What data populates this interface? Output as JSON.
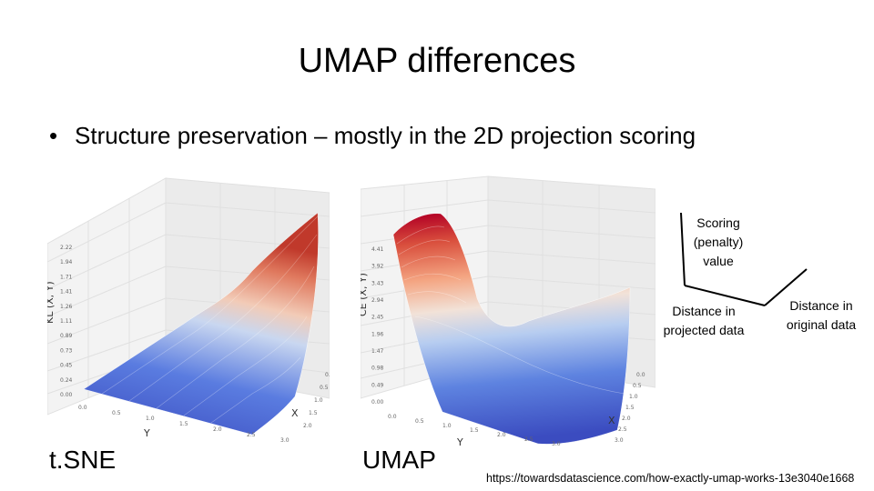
{
  "slide": {
    "title": "UMAP differences",
    "bullet": "Structure preservation – mostly in the 2D projection scoring"
  },
  "plots": {
    "left": {
      "caption": "t.SNE",
      "z_label": "KL (X, Y)",
      "x_label": "X",
      "y_label": "Y",
      "z_ticks": [
        "2.22",
        "1.94",
        "1.71",
        "1.41",
        "1.26",
        "1.11",
        "0.89",
        "0.73",
        "0.45",
        "0.24",
        "0.00"
      ],
      "x_ticks": [
        "0.0",
        "0.5",
        "1.0",
        "1.5",
        "2.0"
      ],
      "y_ticks": [
        "0.0",
        "0.5",
        "1.0",
        "1.5",
        "2.0",
        "2.5",
        "3.0"
      ]
    },
    "right": {
      "caption": "UMAP",
      "z_label": "CE (X, Y)",
      "x_label": "X",
      "y_label": "Y",
      "z_ticks": [
        "4.41",
        "3.92",
        "3.43",
        "2.94",
        "2.45",
        "1.96",
        "1.47",
        "0.98",
        "0.49",
        "0.00"
      ],
      "x_ticks": [
        "0.0",
        "0.5",
        "1.0",
        "1.5",
        "2.0",
        "2.5",
        "3.0"
      ],
      "y_ticks": [
        "0.0",
        "0.5",
        "1.0",
        "1.5",
        "2.0",
        "2.5",
        "3.0"
      ]
    }
  },
  "legend": {
    "scoring": "Scoring\n(penalty)\nvalue",
    "projected": "Distance in\nprojected data",
    "original": "Distance in\noriginal data"
  },
  "source": "https://towardsdatascience.com/how-exactly-umap-works-13e3040e1668",
  "colors": {
    "low": "#3b4cc0",
    "mid": "#dddddd",
    "high": "#b40426"
  }
}
